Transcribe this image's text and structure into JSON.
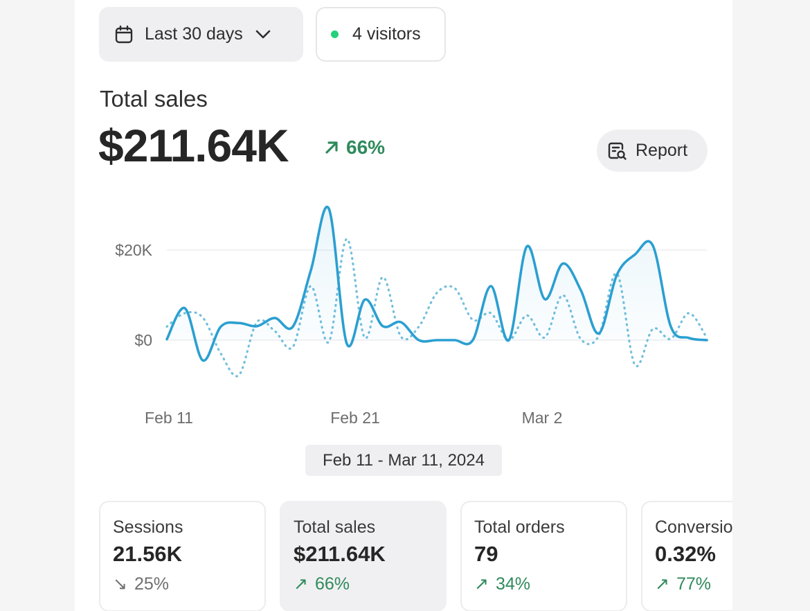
{
  "filters": {
    "date_range_label": "Last 30 days",
    "visitors_label": "4 visitors"
  },
  "header": {
    "title": "Total sales",
    "value": "$211.64K",
    "trend": "66%",
    "trend_direction": "up",
    "report_label": "Report"
  },
  "colors": {
    "accent": "#2b9fd1",
    "positive": "#2f8a5c",
    "live_dot": "#25d07a",
    "neutral_trend": "#707070"
  },
  "chart_data": {
    "type": "line",
    "x_ticks": [
      "Feb 11",
      "Feb 21",
      "Mar 2"
    ],
    "y_ticks": [
      "$20K",
      "$0"
    ],
    "ylim": [
      -8000,
      30000
    ],
    "grid": true,
    "series": [
      {
        "style": "solid",
        "color": "#2b9fd1",
        "values": [
          200,
          7100,
          -4500,
          3000,
          3800,
          3100,
          4900,
          3000,
          15500,
          29200,
          -800,
          9000,
          3100,
          4000,
          0,
          0,
          0,
          0,
          12000,
          0,
          20800,
          9100,
          17000,
          11100,
          1500,
          14500,
          19000,
          21000,
          3000,
          500,
          0
        ]
      },
      {
        "style": "dotted",
        "color": "#72bfdc",
        "values": [
          3000,
          6000,
          5000,
          -3000,
          -7800,
          4000,
          2000,
          -1500,
          12000,
          -400,
          22500,
          500,
          14000,
          800,
          3000,
          10500,
          11500,
          4500,
          6000,
          0,
          5500,
          600,
          10000,
          200,
          1000,
          14800,
          -5500,
          2500,
          300,
          6000,
          500
        ]
      }
    ]
  },
  "date_range_caption": "Feb 11 - Mar 11, 2024",
  "metrics": [
    {
      "label": "Sessions",
      "value": "21.56K",
      "trend": "25%",
      "direction": "down",
      "arrow": "↘"
    },
    {
      "label": "Total sales",
      "value": "$211.64K",
      "trend": "66%",
      "direction": "up",
      "arrow": "↗"
    },
    {
      "label": "Total orders",
      "value": "79",
      "trend": "34%",
      "direction": "up",
      "arrow": "↗"
    },
    {
      "label": "Conversion rate",
      "value": "0.32%",
      "trend": "77%",
      "direction": "up",
      "arrow": "↗"
    }
  ]
}
